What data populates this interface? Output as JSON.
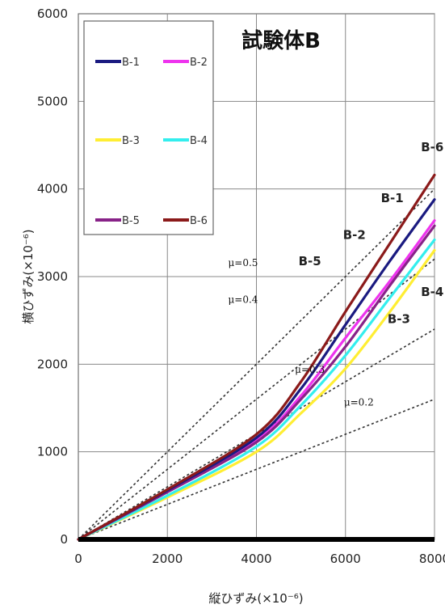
{
  "chart_data": {
    "type": "line",
    "title": "試験体B",
    "xlabel": "縦ひずみ(×10⁻⁶)",
    "ylabel": "横ひずみ(×10⁻⁶)",
    "xlim": [
      0,
      8000
    ],
    "ylim": [
      0,
      6000
    ],
    "x_ticks": [
      "0",
      "2000",
      "4000",
      "6000",
      "8000"
    ],
    "y_ticks": [
      "0",
      "1000",
      "2000",
      "3000",
      "4000",
      "5000",
      "6000"
    ],
    "grid": true,
    "legend_position": "top-left",
    "series": [
      {
        "name": "B-1",
        "color": "#1a1a80",
        "x": [
          0,
          2000,
          4000,
          5000,
          6000,
          7000,
          8000
        ],
        "y": [
          0,
          560,
          1160,
          1720,
          2450,
          3180,
          3880
        ]
      },
      {
        "name": "B-2",
        "color": "#ee33ee",
        "x": [
          0,
          2000,
          4000,
          5000,
          6000,
          7000,
          8000
        ],
        "y": [
          0,
          550,
          1130,
          1640,
          2300,
          2950,
          3640
        ]
      },
      {
        "name": "B-3",
        "color": "#ffee33",
        "x": [
          0,
          2000,
          4000,
          5000,
          6000,
          7000,
          8000
        ],
        "y": [
          0,
          480,
          1000,
          1440,
          1950,
          2600,
          3300
        ]
      },
      {
        "name": "B-4",
        "color": "#33eeee",
        "x": [
          0,
          2000,
          4000,
          5000,
          6000,
          7000,
          8000
        ],
        "y": [
          0,
          500,
          1060,
          1530,
          2100,
          2760,
          3420
        ]
      },
      {
        "name": "B-5",
        "color": "#882288",
        "x": [
          0,
          2000,
          4000,
          5000,
          6000,
          7000,
          8000
        ],
        "y": [
          0,
          540,
          1110,
          1600,
          2200,
          2900,
          3580
        ]
      },
      {
        "name": "B-6",
        "color": "#8b1a1a",
        "x": [
          0,
          2000,
          4000,
          5000,
          6000,
          7000,
          8000
        ],
        "y": [
          0,
          570,
          1200,
          1800,
          2600,
          3380,
          4160
        ]
      }
    ],
    "reference_lines": [
      {
        "label": "μ=0.5",
        "slope": 0.5
      },
      {
        "label": "μ=0.4",
        "slope": 0.4
      },
      {
        "label": "μ=0.3",
        "slope": 0.3
      },
      {
        "label": "μ=0.2",
        "slope": 0.2
      }
    ],
    "series_labels": [
      {
        "text": "B-6",
        "x": 7950,
        "y": 4430
      },
      {
        "text": "B-1",
        "x": 7050,
        "y": 3850
      },
      {
        "text": "B-2",
        "x": 6200,
        "y": 3430
      },
      {
        "text": "B-5",
        "x": 5200,
        "y": 3130
      },
      {
        "text": "B-4",
        "x": 7950,
        "y": 2780
      },
      {
        "text": "B-3",
        "x": 7200,
        "y": 2470
      }
    ],
    "ref_labels": [
      {
        "text": "μ=0.5",
        "x": 3700,
        "y": 3120
      },
      {
        "text": "μ=0.4",
        "x": 3700,
        "y": 2700
      },
      {
        "text": "μ=0.3",
        "x": 5200,
        "y": 1900
      },
      {
        "text": "μ=0.2",
        "x": 6300,
        "y": 1530
      }
    ]
  }
}
